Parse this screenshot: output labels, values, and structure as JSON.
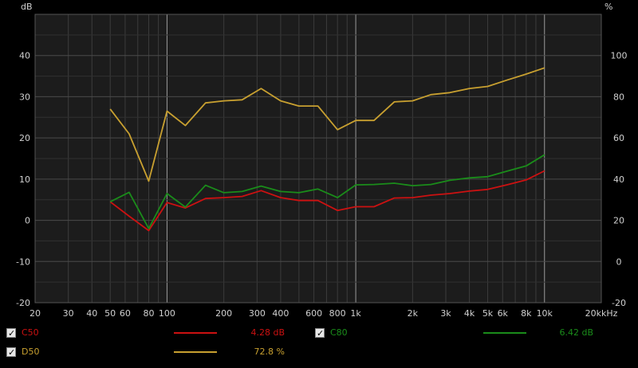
{
  "chart_data": {
    "type": "line",
    "title": "",
    "xlabel": "kHz",
    "ylabel_left": "dB",
    "ylabel_right": "%",
    "x_scale": "log",
    "xlim": [
      20,
      20000
    ],
    "ylim_left": [
      -20,
      50
    ],
    "ylim_right": [
      -20,
      120
    ],
    "x_tick_values": [
      20,
      30,
      40,
      50,
      60,
      80,
      100,
      200,
      300,
      400,
      600,
      800,
      1000,
      2000,
      3000,
      4000,
      5000,
      6000,
      8000,
      10000,
      20000
    ],
    "x_tick_labels": [
      "20",
      "30",
      "40",
      "50",
      "60",
      "80",
      "100",
      "200",
      "300",
      "400",
      "600",
      "800",
      "1k",
      "2k",
      "3k",
      "4k",
      "5k",
      "6k",
      "8k",
      "10k",
      "20k"
    ],
    "y_left_ticks": [
      -20,
      -10,
      0,
      10,
      20,
      30,
      40
    ],
    "y_right_ticks": [
      -20,
      0,
      20,
      40,
      60,
      80,
      100
    ],
    "grid": true,
    "x": [
      50,
      63,
      80,
      100,
      125,
      160,
      200,
      250,
      315,
      400,
      500,
      630,
      800,
      1000,
      1250,
      1600,
      2000,
      2500,
      3150,
      4000,
      5000,
      6300,
      8000,
      10000
    ],
    "series": [
      {
        "name": "C50",
        "axis": "left",
        "color": "#cc1111",
        "values": [
          4.5,
          1.0,
          -2.5,
          4.3,
          3.0,
          5.3,
          5.5,
          5.8,
          7.2,
          5.5,
          4.8,
          4.8,
          2.4,
          3.3,
          3.3,
          5.4,
          5.5,
          6.1,
          6.5,
          7.1,
          7.5,
          8.6,
          9.8,
          12.0
        ]
      },
      {
        "name": "C80",
        "axis": "left",
        "color": "#1a8c1a",
        "values": [
          4.5,
          6.8,
          -2.0,
          6.5,
          3.2,
          8.5,
          6.7,
          7.0,
          8.3,
          7.0,
          6.7,
          7.6,
          5.5,
          8.6,
          8.7,
          9.0,
          8.4,
          8.7,
          9.7,
          10.3,
          10.6,
          11.9,
          13.2,
          15.9
        ]
      },
      {
        "name": "D50",
        "axis": "right",
        "color": "#c8a030",
        "values": [
          74,
          62,
          39,
          73,
          66,
          77,
          78,
          78.5,
          84,
          78,
          75.5,
          75.5,
          64,
          68.5,
          68.5,
          77.5,
          78,
          81,
          82,
          84,
          85,
          88,
          91,
          94
        ]
      }
    ],
    "legend_placement": "bottom",
    "legend": [
      {
        "name": "C50",
        "value": "4.28 dB",
        "color": "#cc1111",
        "checked": true
      },
      {
        "name": "C80",
        "value": "6.42 dB",
        "color": "#1a8c1a",
        "checked": true
      },
      {
        "name": "D50",
        "value": "72.8 %",
        "color": "#c8a030",
        "checked": true
      }
    ]
  }
}
